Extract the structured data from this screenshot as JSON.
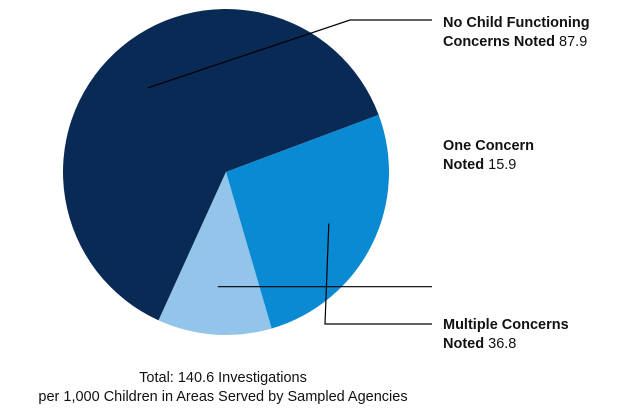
{
  "chart_data": {
    "type": "pie",
    "slices": [
      {
        "label_bold_line1": "No Child Functioning",
        "label_bold_line2": "Concerns Noted",
        "value": 87.9,
        "value_text": "87.9",
        "color": "#0a2a56"
      },
      {
        "label_bold_line1": "One Concern",
        "label_bold_line2": "Noted",
        "value": 15.9,
        "value_text": "15.9",
        "color": "#93c5ea"
      },
      {
        "label_bold_line1": "Multiple Concerns",
        "label_bold_line2": "Noted",
        "value": 36.8,
        "value_text": "36.8",
        "color": "#0a8ad2"
      }
    ],
    "footnote_line1": "Total: 140.6 Investigations",
    "footnote_line2": "per 1,000 Children in Areas Served by Sampled Agencies"
  }
}
